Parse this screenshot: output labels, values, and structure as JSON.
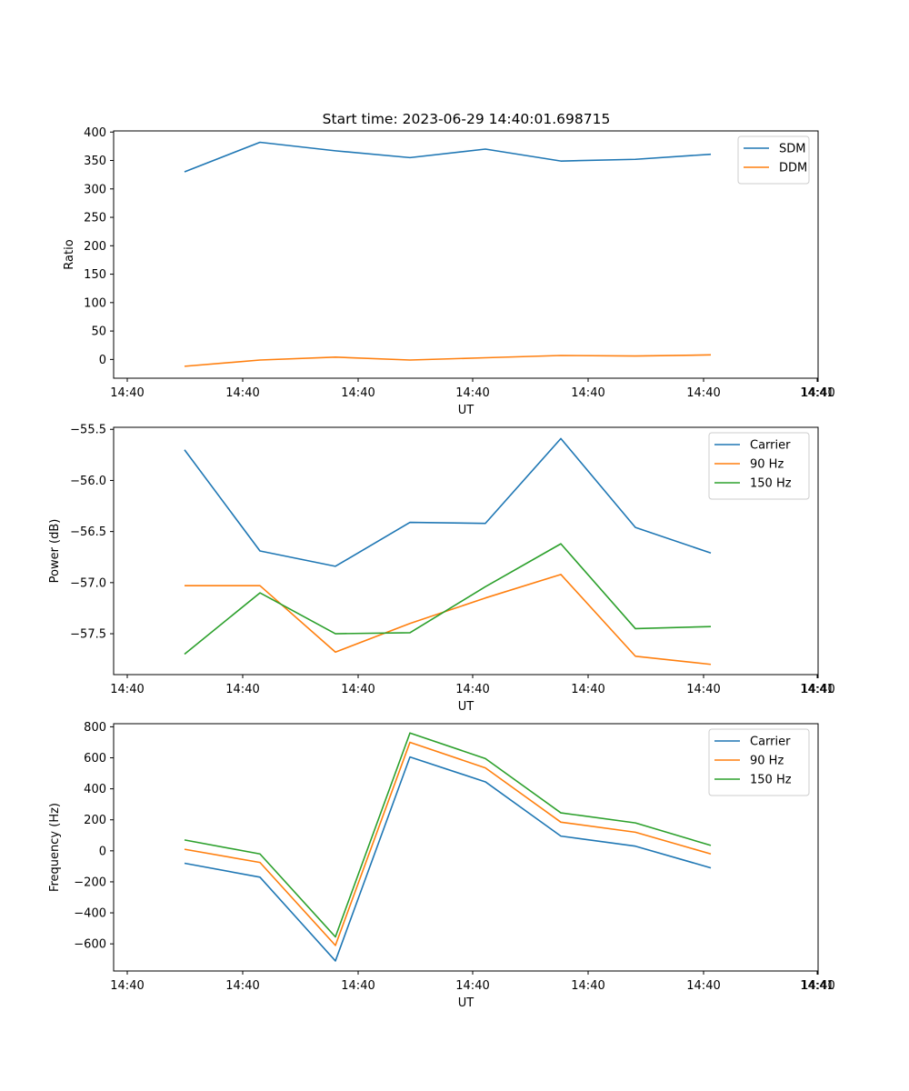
{
  "figure_title": "Start time: 2023-06-29 14:40:01.698715",
  "chart_data": [
    {
      "type": "line",
      "xlabel": "UT",
      "ylabel": "Ratio",
      "x_tick_labels": [
        "14:40",
        "14:40",
        "14:40",
        "14:40",
        "14:40",
        "14:40",
        "14:40",
        "14:41"
      ],
      "y_ticks": [
        0,
        50,
        100,
        150,
        200,
        250,
        300,
        350,
        400
      ],
      "ylim": [
        -33,
        402
      ],
      "x_points": 8,
      "legend_position": "top-right",
      "series": [
        {
          "name": "SDM",
          "color": "#1f77b4",
          "values": [
            330,
            382,
            367,
            355,
            370,
            349,
            352,
            361
          ]
        },
        {
          "name": "DDM",
          "color": "#ff7f0e",
          "values": [
            -12,
            -1,
            4,
            -1,
            3,
            7,
            6,
            8
          ]
        }
      ]
    },
    {
      "type": "line",
      "xlabel": "UT",
      "ylabel": "Power (dB)",
      "x_tick_labels": [
        "14:40",
        "14:40",
        "14:40",
        "14:40",
        "14:40",
        "14:40",
        "14:40",
        "14:41"
      ],
      "y_ticks": [
        -57.5,
        -57.0,
        -56.5,
        -56.0,
        -55.5
      ],
      "y_tick_text": [
        "−57.5",
        "−57.0",
        "−56.5",
        "−56.0",
        "−55.5"
      ],
      "ylim": [
        -57.9,
        -55.48
      ],
      "x_points": 8,
      "legend_position": "top-right",
      "series": [
        {
          "name": "Carrier",
          "color": "#1f77b4",
          "values": [
            -55.7,
            -56.69,
            -56.84,
            -56.41,
            -56.42,
            -55.59,
            -56.46,
            -56.71
          ]
        },
        {
          "name": "90 Hz",
          "color": "#ff7f0e",
          "values": [
            -57.03,
            -57.03,
            -57.68,
            -57.4,
            -57.15,
            -56.92,
            -57.72,
            -57.8
          ]
        },
        {
          "name": "150 Hz",
          "color": "#2ca02c",
          "values": [
            -57.7,
            -57.1,
            -57.5,
            -57.49,
            -57.04,
            -56.62,
            -57.45,
            -57.43
          ]
        }
      ]
    },
    {
      "type": "line",
      "xlabel": "UT",
      "ylabel": "Frequency (Hz)",
      "x_tick_labels": [
        "14:40",
        "14:40",
        "14:40",
        "14:40",
        "14:40",
        "14:40",
        "14:40",
        "14:41"
      ],
      "y_ticks": [
        -600,
        -400,
        -200,
        0,
        200,
        400,
        600,
        800
      ],
      "y_tick_text": [
        "−600",
        "−400",
        "−200",
        "0",
        "200",
        "400",
        "600",
        "800"
      ],
      "ylim": [
        -775,
        820
      ],
      "x_points": 8,
      "legend_position": "top-right",
      "series": [
        {
          "name": "Carrier",
          "color": "#1f77b4",
          "values": [
            -80,
            -170,
            -710,
            605,
            445,
            95,
            30,
            -110
          ]
        },
        {
          "name": "90 Hz",
          "color": "#ff7f0e",
          "values": [
            10,
            -75,
            -610,
            700,
            535,
            185,
            120,
            -20
          ]
        },
        {
          "name": "150 Hz",
          "color": "#2ca02c",
          "values": [
            70,
            -20,
            -555,
            760,
            595,
            245,
            180,
            35
          ]
        }
      ]
    }
  ]
}
